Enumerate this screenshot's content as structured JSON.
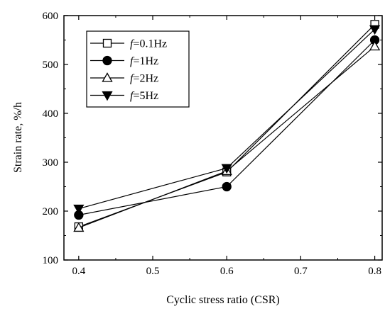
{
  "chart_data": {
    "type": "line",
    "title": "",
    "xlabel": "Cyclic stress ratio (CSR)",
    "ylabel": "Strain  rate, %/h",
    "xlim": [
      0.38,
      0.81
    ],
    "ylim": [
      100,
      600
    ],
    "xticks": [
      0.4,
      0.5,
      0.6,
      0.7,
      0.8
    ],
    "xtick_labels": [
      "0.4",
      "0.5",
      "0.6",
      "0.7",
      "0.8"
    ],
    "yticks": [
      100,
      200,
      300,
      400,
      500,
      600
    ],
    "ytick_labels": [
      "100",
      "200",
      "300",
      "400",
      "500",
      "600"
    ],
    "grid": false,
    "legend_position": "top-left",
    "x": [
      0.4,
      0.6,
      0.8
    ],
    "series": [
      {
        "name_prefix": "f",
        "name_suffix": "=0.1Hz",
        "marker": "open-square",
        "values": [
          168,
          280,
          582
        ]
      },
      {
        "name_prefix": "f",
        "name_suffix": "=1Hz",
        "marker": "filled-circle",
        "values": [
          192,
          250,
          550
        ]
      },
      {
        "name_prefix": "f",
        "name_suffix": "=2Hz",
        "marker": "open-triangle-up",
        "values": [
          166,
          282,
          537
        ]
      },
      {
        "name_prefix": "f",
        "name_suffix": "=5Hz",
        "marker": "filled-triangle-down",
        "values": [
          205,
          288,
          572
        ]
      }
    ]
  }
}
